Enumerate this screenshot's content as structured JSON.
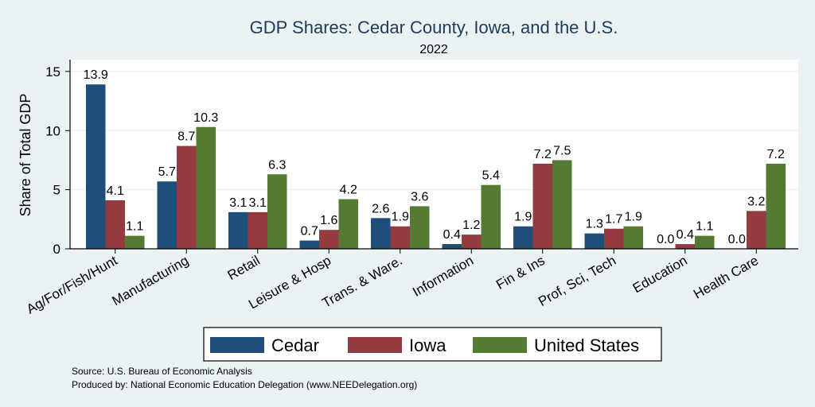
{
  "chart_data": {
    "type": "bar",
    "title": "GDP Shares: Cedar County, Iowa, and the U.S.",
    "subtitle": "2022",
    "ylabel": "Share of Total GDP",
    "xlabel": "",
    "ylim": [
      0,
      16
    ],
    "yticks": [
      0,
      5,
      10,
      15
    ],
    "grid": true,
    "legend_position": "bottom",
    "categories": [
      "Ag/For/Fish/Hunt",
      "Manufacturing",
      "Retail",
      "Leisure & Hosp",
      "Trans. & Ware.",
      "Information",
      "Fin & Ins",
      "Prof, Sci, Tech",
      "Education",
      "Health Care"
    ],
    "series": [
      {
        "name": "Cedar",
        "color": "#1f4e79",
        "values": [
          13.9,
          5.7,
          3.1,
          0.7,
          2.6,
          0.4,
          1.9,
          1.3,
          0.0,
          0.0
        ]
      },
      {
        "name": "Iowa",
        "color": "#943a41",
        "values": [
          4.1,
          8.7,
          3.1,
          1.6,
          1.9,
          1.2,
          7.2,
          1.7,
          0.4,
          3.2
        ]
      },
      {
        "name": "United States",
        "color": "#547a33",
        "values": [
          1.1,
          10.3,
          6.3,
          4.2,
          3.6,
          5.4,
          7.5,
          1.9,
          1.1,
          7.2
        ]
      }
    ]
  },
  "footnotes": {
    "source": "Source: U.S. Bureau of Economic Analysis",
    "produced_by": "Produced by: National Economic Education Delegation (www.NEEDelegation.org)"
  }
}
